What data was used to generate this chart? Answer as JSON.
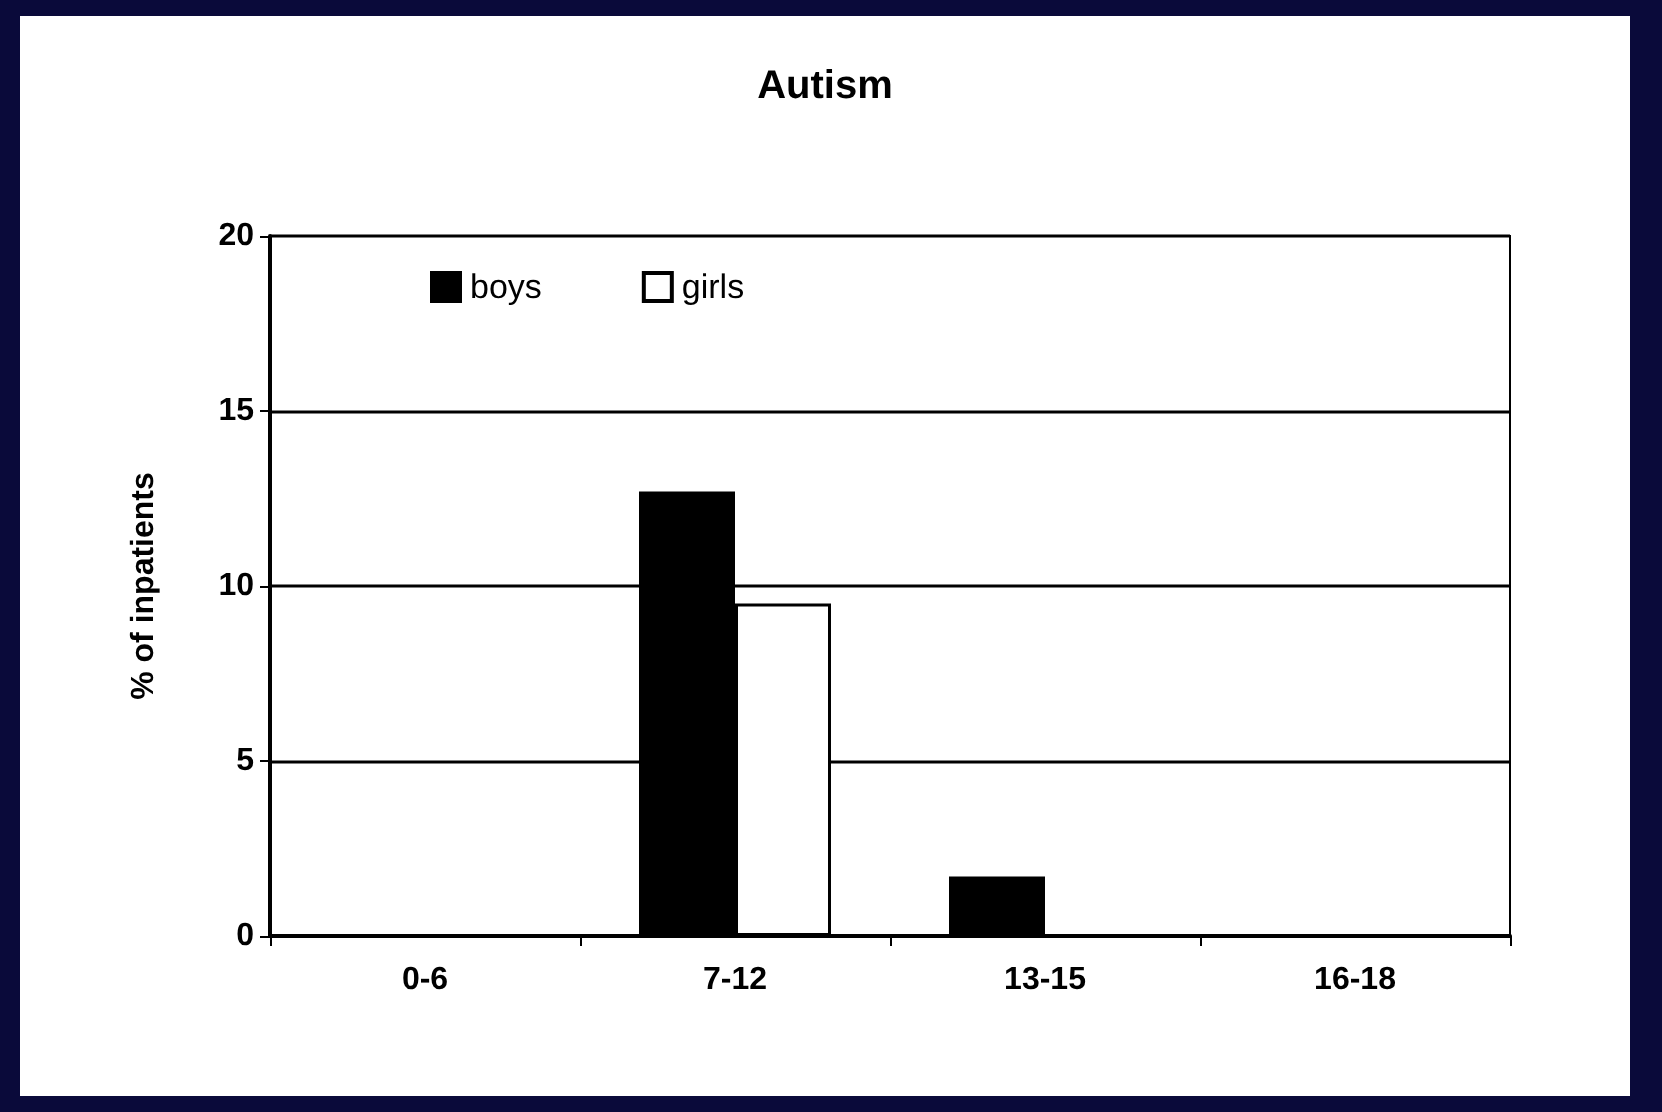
{
  "chart_data": {
    "type": "bar",
    "title": "Autism",
    "ylabel": "% of inpatients",
    "categories": [
      "0-6",
      "7-12",
      "13-15",
      "16-18"
    ],
    "series": [
      {
        "name": "boys",
        "color": "#000000",
        "values": [
          0,
          12.7,
          1.7,
          0
        ]
      },
      {
        "name": "girls",
        "color": "#ffffff",
        "values": [
          0,
          9.5,
          0,
          0
        ]
      }
    ],
    "ylim": [
      0,
      20
    ],
    "yticks": [
      0,
      5,
      10,
      15,
      20
    ],
    "grid": "y",
    "legend": "top left"
  }
}
